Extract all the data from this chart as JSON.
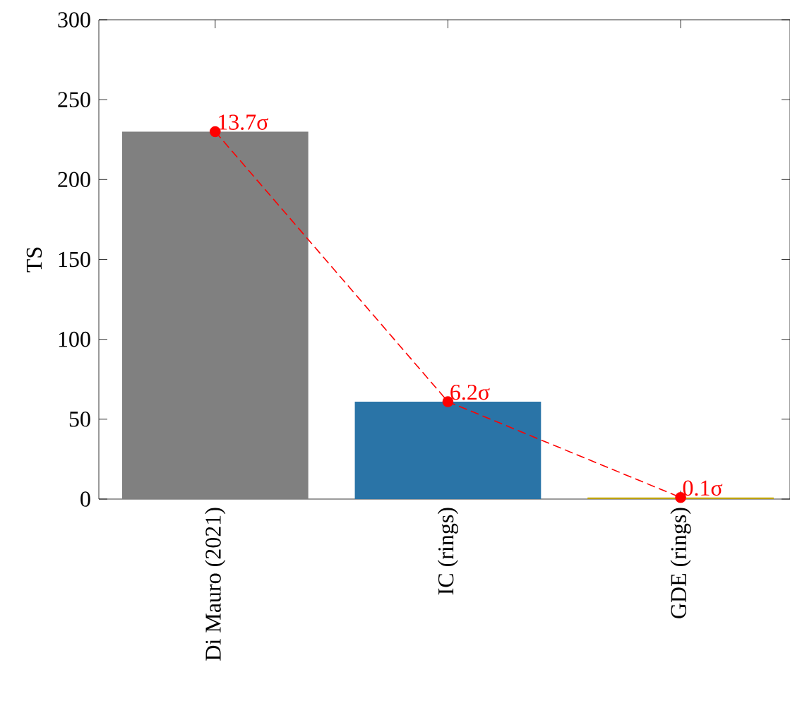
{
  "chart_data": {
    "type": "bar",
    "ylabel": "TS",
    "categories": [
      "Di Mauro (2021)",
      "IC (rings)",
      "GDE (rings)"
    ],
    "series": [
      {
        "colors": [
          "#808080",
          "#2a74a7",
          "#bfa300"
        ],
        "values": [
          230,
          61,
          1
        ]
      },
      {
        "type": "line",
        "color": "#ff0000",
        "values": [
          230,
          61,
          1
        ],
        "line_style": "dashed",
        "marker": "circle"
      }
    ],
    "annotations": [
      {
        "text": "13.7σ",
        "x": "Di Mauro (2021)",
        "y": 230
      },
      {
        "text": "6.2σ",
        "x": "IC (rings)",
        "y": 61
      },
      {
        "text": "0.1σ",
        "x": "GDE (rings)",
        "y": 1
      }
    ],
    "ylim": [
      0,
      300
    ],
    "yticks": [
      0,
      50,
      100,
      150,
      200,
      250,
      300
    ]
  }
}
